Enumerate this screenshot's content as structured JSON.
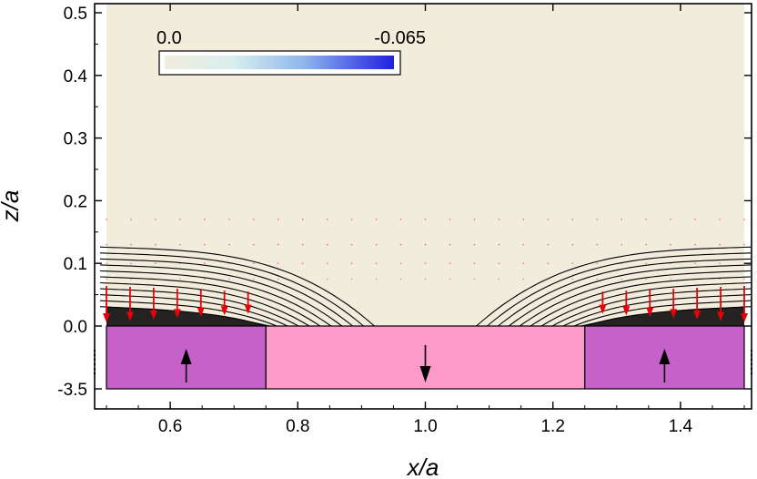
{
  "chart_data": {
    "type": "contour",
    "xlabel": "x/a",
    "ylabel": "z/a",
    "xlim": [
      0.48,
      1.52
    ],
    "ylim": [
      -3.5,
      0.5
    ],
    "x_ticks": [
      0.6,
      0.8,
      1.0,
      1.2,
      1.4
    ],
    "x_tick_labels": [
      "0.6",
      "0.8",
      "1.0",
      "1.2",
      "1.4"
    ],
    "y_ticks": [
      -3.5,
      0.0,
      0.1,
      0.2,
      0.3,
      0.4,
      0.5
    ],
    "y_tick_labels": [
      "-3.5",
      "0.0",
      "0.1",
      "0.2",
      "0.3",
      "0.4",
      "0.5"
    ],
    "colorbar": {
      "min_label": "0.0",
      "max_label": "-0.065",
      "min": 0.0,
      "max": -0.065
    },
    "magnets": [
      {
        "x_start": 0.5,
        "x_end": 0.75,
        "magnetization": "up",
        "color": "#c561c8"
      },
      {
        "x_start": 0.75,
        "x_end": 1.25,
        "magnetization": "down",
        "color": "#fc9ac9"
      },
      {
        "x_start": 1.25,
        "x_end": 1.5,
        "magnetization": "up",
        "color": "#c561c8"
      }
    ],
    "contour_levels": 11,
    "colors": {
      "background": "#f2ecdd",
      "arrow": "#e8000a",
      "colorbar_end": "#2020e0"
    }
  }
}
